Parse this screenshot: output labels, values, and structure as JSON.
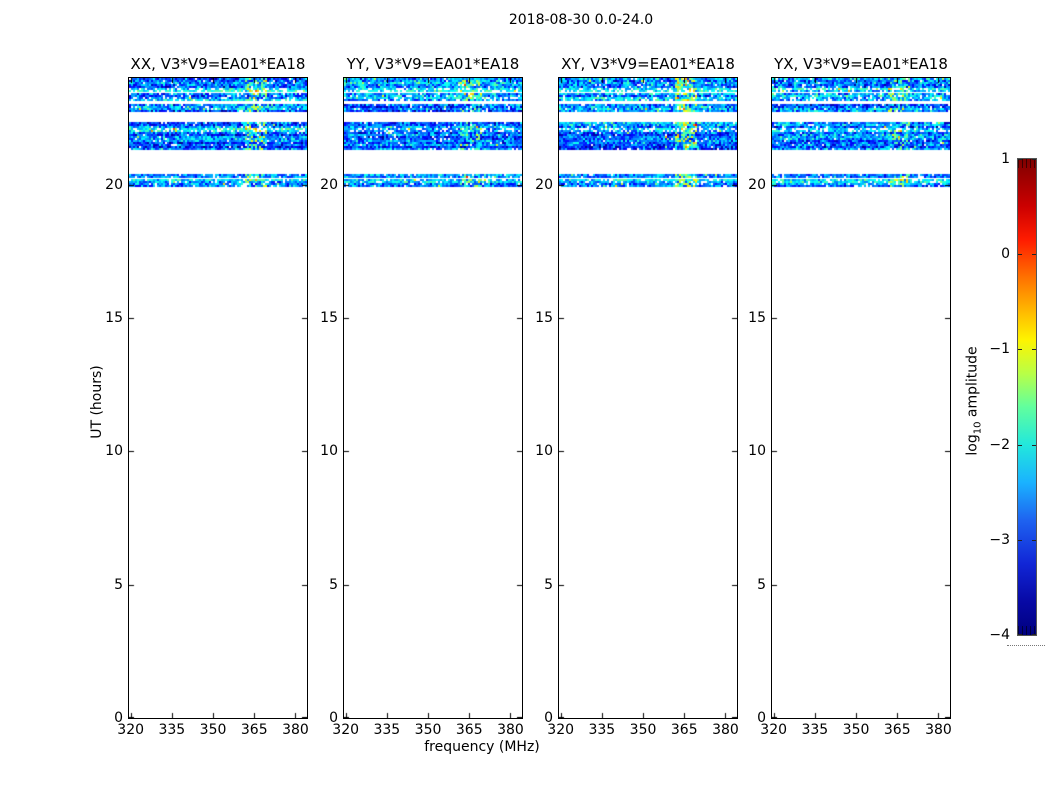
{
  "figure": {
    "title": "2018-08-30 0.0-24.0",
    "xlabel": "frequency (MHz)",
    "ylabel": "UT (hours)"
  },
  "chart_data": {
    "type": "heatmap",
    "title": "2018-08-30 0.0-24.0",
    "panels": [
      {
        "polarization": "XX",
        "title": "XX, V3*V9=EA01*EA18",
        "streak_strength": 1.0
      },
      {
        "polarization": "YY",
        "title": "YY, V3*V9=EA01*EA18",
        "streak_strength": 0.85
      },
      {
        "polarization": "XY",
        "title": "XY, V3*V9=EA01*EA18",
        "streak_strength": 1.25
      },
      {
        "polarization": "YX",
        "title": "YX, V3*V9=EA01*EA18",
        "streak_strength": 0.85
      }
    ],
    "x_axis": {
      "label": "frequency (MHz)",
      "range": [
        319.4,
        384.2
      ],
      "ticks": [
        320,
        335,
        350,
        365,
        380
      ]
    },
    "y_axis": {
      "label": "UT (hours)",
      "range": [
        0,
        24
      ],
      "ticks": [
        0,
        5,
        10,
        15,
        20
      ]
    },
    "colorbar": {
      "label_pre": "log",
      "label_sub": "10",
      "label_post": " amplitude",
      "vmin": -4,
      "vmax": 1,
      "ticks": [
        1,
        0,
        -1,
        -2,
        -3,
        -4
      ],
      "colormap": "jet",
      "gradient_stops": [
        {
          "pos": 0.0,
          "color": "#7f0000"
        },
        {
          "pos": 0.1,
          "color": "#cc0000"
        },
        {
          "pos": 0.17,
          "color": "#ff1c00"
        },
        {
          "pos": 0.25,
          "color": "#ff7300"
        },
        {
          "pos": 0.32,
          "color": "#ffb900"
        },
        {
          "pos": 0.38,
          "color": "#fef400"
        },
        {
          "pos": 0.45,
          "color": "#b9ff46"
        },
        {
          "pos": 0.52,
          "color": "#62ff9d"
        },
        {
          "pos": 0.6,
          "color": "#22e8dc"
        },
        {
          "pos": 0.68,
          "color": "#1ab2ff"
        },
        {
          "pos": 0.76,
          "color": "#1e62f0"
        },
        {
          "pos": 0.85,
          "color": "#1126d6"
        },
        {
          "pos": 0.93,
          "color": "#0709a5"
        },
        {
          "pos": 1.0,
          "color": "#00007f"
        }
      ]
    },
    "time_bands_ut": [
      {
        "from": 24.0,
        "to": 23.64,
        "mean": -2.7,
        "spread": 1.1,
        "density": 0.96
      },
      {
        "from": 23.61,
        "to": 23.48,
        "mean": -2.35,
        "spread": 0.85,
        "density": 0.72
      },
      {
        "from": 23.44,
        "to": 23.33,
        "mean": -2.65,
        "spread": 1.0,
        "density": 0.9
      },
      {
        "from": 23.29,
        "to": 23.16,
        "mean": -2.5,
        "spread": 0.95,
        "density": 0.8
      },
      {
        "from": 23.03,
        "to": 22.76,
        "mean": -2.75,
        "spread": 1.1,
        "density": 0.96
      },
      {
        "from": 22.35,
        "to": 22.12,
        "mean": -2.7,
        "spread": 1.05,
        "density": 0.95
      },
      {
        "from": 22.12,
        "to": 21.97,
        "mean": -2.4,
        "spread": 0.85,
        "density": 0.7
      },
      {
        "from": 21.97,
        "to": 21.3,
        "mean": -2.9,
        "spread": 1.0,
        "density": 0.97
      },
      {
        "from": 20.41,
        "to": 20.26,
        "mean": -2.45,
        "spread": 0.85,
        "density": 0.92
      },
      {
        "from": 20.23,
        "to": 20.1,
        "mean": -2.4,
        "spread": 0.85,
        "density": 0.85
      },
      {
        "from": 20.06,
        "to": 19.9,
        "mean": -2.6,
        "spread": 0.95,
        "density": 0.9
      }
    ],
    "rfi_streak": {
      "freq_min": 361.5,
      "freq_max": 369.5,
      "boost": 1.5,
      "density": 0.5
    }
  }
}
